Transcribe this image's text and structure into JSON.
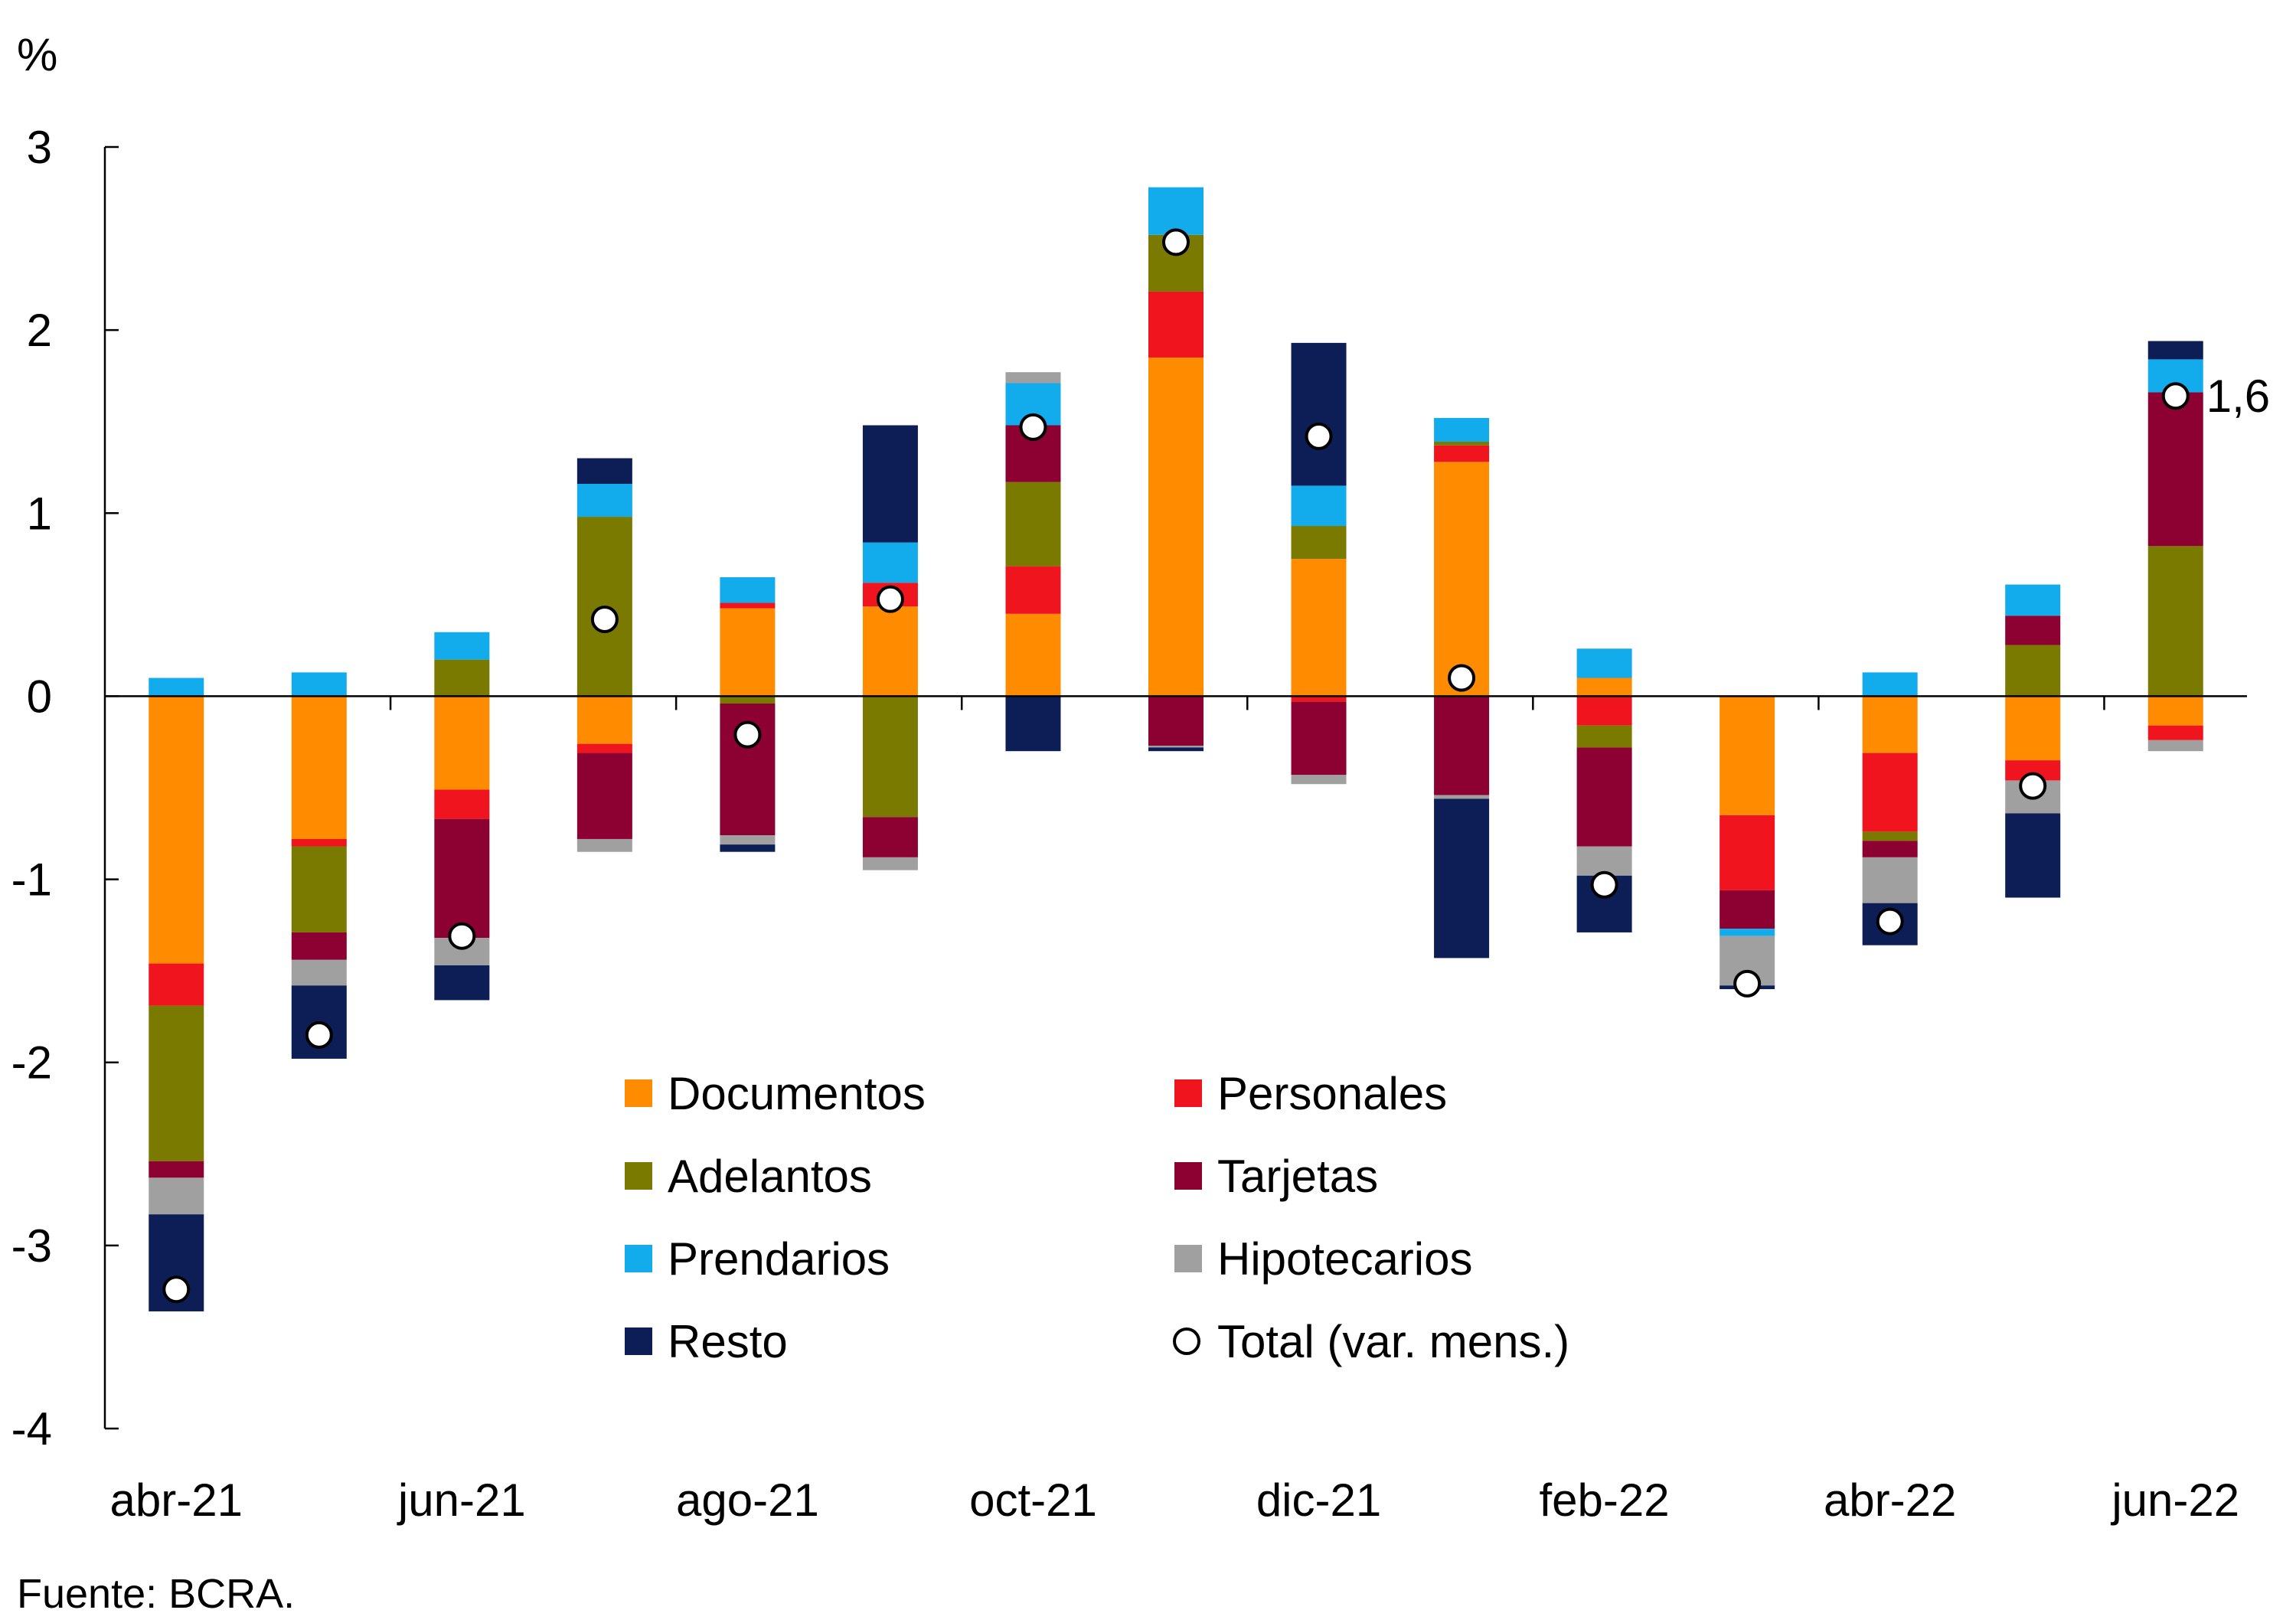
{
  "chart_data": {
    "type": "bar",
    "stacked": true,
    "unit_label": "%",
    "ylim": [
      -4,
      3
    ],
    "yticks": [
      3,
      2,
      1,
      0,
      -1,
      -2,
      -3,
      -4
    ],
    "grid": false,
    "legend_position": "bottom-center inside plot",
    "source": "Fuente: BCRA.",
    "categories": [
      "abr-21",
      "may-21",
      "jun-21",
      "jul-21",
      "ago-21",
      "sep-21",
      "oct-21",
      "nov-21",
      "dic-21",
      "ene-22",
      "feb-22",
      "mar-22",
      "abr-22",
      "may-22",
      "jun-22"
    ],
    "category_labels": [
      "abr-21",
      "",
      "jun-21",
      "",
      "ago-21",
      "",
      "oct-21",
      "",
      "dic-21",
      "",
      "feb-22",
      "",
      "abr-22",
      "",
      "jun-22"
    ],
    "series": [
      {
        "name": "Documentos",
        "color": "#FF8C00",
        "values": [
          -1.46,
          -0.78,
          -0.51,
          -0.26,
          0.48,
          0.49,
          0.45,
          1.85,
          0.75,
          1.28,
          0.1,
          -0.65,
          -0.31,
          -0.35,
          -0.16
        ]
      },
      {
        "name": "Personales",
        "color": "#F0141E",
        "values": [
          -0.23,
          -0.04,
          -0.16,
          -0.05,
          0.03,
          0.13,
          0.26,
          0.36,
          -0.03,
          0.09,
          -0.16,
          -0.41,
          -0.43,
          -0.11,
          -0.08
        ]
      },
      {
        "name": "Adelantos",
        "color": "#7A7A00",
        "values": [
          -0.85,
          -0.47,
          0.2,
          0.98,
          -0.04,
          -0.66,
          0.46,
          0.31,
          0.18,
          0.02,
          -0.12,
          0.0,
          -0.05,
          0.28,
          0.82
        ]
      },
      {
        "name": "Tarjetas",
        "color": "#8C0032",
        "values": [
          -0.09,
          -0.15,
          -0.65,
          -0.47,
          -0.72,
          -0.22,
          0.31,
          -0.27,
          -0.4,
          -0.54,
          -0.54,
          -0.21,
          -0.09,
          0.16,
          0.84
        ]
      },
      {
        "name": "Prendarios",
        "color": "#12ACEC",
        "values": [
          0.1,
          0.13,
          0.15,
          0.18,
          0.14,
          0.22,
          0.23,
          0.26,
          0.22,
          0.13,
          0.16,
          -0.04,
          0.13,
          0.17,
          0.18
        ]
      },
      {
        "name": "Hipotecarios",
        "color": "#A0A0A0",
        "values": [
          -0.2,
          -0.14,
          -0.15,
          -0.07,
          -0.05,
          -0.07,
          0.06,
          -0.01,
          -0.05,
          -0.02,
          -0.16,
          -0.27,
          -0.25,
          -0.18,
          -0.06
        ]
      },
      {
        "name": "Resto",
        "color": "#0D1E56",
        "values": [
          -0.53,
          -0.4,
          -0.19,
          0.14,
          -0.04,
          0.64,
          -0.3,
          -0.02,
          0.78,
          -0.87,
          -0.31,
          -0.02,
          -0.23,
          -0.46,
          0.1
        ]
      }
    ],
    "total_series": {
      "name": "Total (var. mens.)",
      "values": [
        -3.24,
        -1.85,
        -1.31,
        0.42,
        -0.21,
        0.53,
        1.47,
        2.48,
        1.42,
        0.1,
        -1.03,
        -1.57,
        -1.23,
        -0.49,
        1.64
      ]
    },
    "annotations": [
      {
        "category": "jun-22",
        "text": "1,6"
      }
    ],
    "legend_order": [
      "Documentos",
      "Personales",
      "Adelantos",
      "Tarjetas",
      "Prendarios",
      "Hipotecarios",
      "Resto",
      "Total (var. mens.)"
    ]
  }
}
